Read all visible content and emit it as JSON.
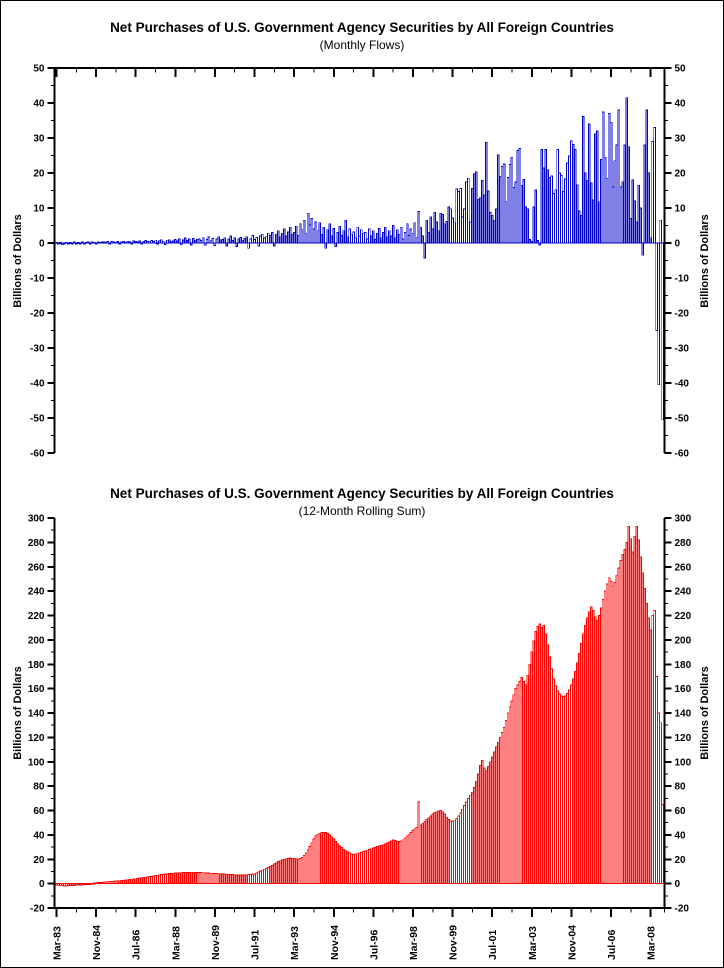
{
  "page": {
    "background": "#ffffff",
    "border_color": "#000000"
  },
  "chart_data": [
    {
      "type": "bar",
      "title": "Net Purchases of U.S. Government Agency Securities by All Foreign Countries",
      "subtitle": "(Monthly Flows)",
      "ylabel": "Billions of Dollars",
      "ylabel_right": "Billions of Dollars",
      "ylim": [
        -60,
        50
      ],
      "ytick_major": 10,
      "ytick_minor": 5,
      "bar_color": "#0000CC",
      "grid": false,
      "x_unit": "month",
      "x_start": "Mar-1983",
      "x_end": "Sep-2008",
      "xtick_interval_months": 20,
      "xtick_labels": [
        "Mar-83",
        "Nov-84",
        "Jul-86",
        "Mar-88",
        "Nov-89",
        "Jul-91",
        "Mar-93",
        "Nov-94",
        "Jul-96",
        "Mar-98",
        "Nov-99",
        "Jul-01",
        "Mar-03",
        "Nov-04",
        "Jul-06",
        "Mar-08"
      ],
      "values": [
        0.2,
        -0.3,
        0.1,
        -0.4,
        -0.2,
        0.2,
        -0.3,
        0.1,
        -0.2,
        0.3,
        -0.2,
        0.1,
        -0.2,
        0.3,
        -0.1,
        0.2,
        0.3,
        -0.2,
        0.3,
        0.2,
        -0.1,
        0.3,
        0.2,
        0.3,
        0.3,
        0.2,
        0.4,
        -0.2,
        0.4,
        0.3,
        0.2,
        0.4,
        -0.2,
        0.3,
        0.5,
        0.2,
        0.5,
        0.3,
        -0.2,
        0.6,
        0.4,
        0.3,
        0.6,
        -0.3,
        0.5,
        0.7,
        0.4,
        0.5,
        0.7,
        0.4,
        0.8,
        -0.3,
        0.6,
        0.9,
        0.5,
        -0.4,
        0.8,
        0.9,
        0.5,
        0.6,
        1.0,
        0.6,
        1.2,
        -0.5,
        0.9,
        1.4,
        0.7,
        1.1,
        -0.6,
        1.3,
        0.8,
        1.0,
        1.2,
        0.7,
        1.5,
        -0.6,
        1.0,
        1.7,
        0.8,
        1.3,
        -0.7,
        1.2,
        1.8,
        0.9,
        1.0,
        1.5,
        -0.8,
        1.2,
        2.0,
        0.7,
        1.4,
        -1.0,
        1.1,
        1.6,
        0.8,
        1.3,
        1.8,
        -1.5,
        1.2,
        2.2,
        1.0,
        1.6,
        -0.8,
        2.0,
        2.5,
        1.4,
        1.8,
        2.8,
        2.2,
        3.0,
        -0.9,
        2.5,
        3.5,
        1.8,
        2.8,
        4.0,
        2.0,
        3.2,
        4.5,
        2.5,
        3.0,
        4.8,
        2.2,
        5.5,
        3.8,
        6.5,
        2.8,
        8.5,
        5.2,
        7.0,
        4.0,
        6.0,
        3.5,
        5.8,
        2.5,
        4.5,
        -1.5,
        3.8,
        5.5,
        2.0,
        4.2,
        -1.0,
        3.0,
        4.8,
        2.2,
        3.5,
        6.5,
        1.8,
        4.0,
        2.5,
        3.2,
        1.5,
        4.5,
        2.0,
        3.8,
        2.8,
        3.0,
        1.2,
        4.0,
        2.0,
        3.5,
        1.0,
        2.8,
        4.2,
        1.5,
        3.0,
        4.5,
        1.8,
        3.5,
        2.0,
        5.0,
        1.5,
        3.8,
        2.5,
        4.5,
        1.2,
        3.0,
        5.5,
        2.2,
        4.0,
        2.8,
        5.8,
        1.5,
        9.0,
        4.5,
        2.0,
        -4.3,
        6.5,
        3.0,
        7.5,
        4.0,
        8.8,
        6.0,
        3.5,
        8.5,
        8.1,
        5.5,
        6.2,
        10.3,
        9.8,
        7.1,
        5.8,
        15.4,
        14.7,
        15.6,
        7.4,
        9.7,
        17.4,
        18.5,
        6.0,
        15.6,
        19.7,
        20.3,
        12.5,
        12.9,
        17.8,
        13.7,
        28.7,
        14.9,
        8.7,
        7.9,
        6.5,
        9.7,
        25.1,
        19.0,
        21.9,
        22.6,
        11.8,
        18.7,
        22.4,
        24.5,
        15.8,
        17.4,
        26.4,
        27.0,
        16.4,
        18.1,
        10.3,
        9.8,
        1.0,
        0.4,
        10.3,
        15.2,
        0.7,
        -0.6,
        26.7,
        21.4,
        26.7,
        20.9,
        18.7,
        19.1,
        14.2,
        15.2,
        26.7,
        20.0,
        19.3,
        14.7,
        18.3,
        22.9,
        24.8,
        29.2,
        28.2,
        26.7,
        16.6,
        9.1,
        7.9,
        36.1,
        20.0,
        17.8,
        34.0,
        17.1,
        12.3,
        31.1,
        32.0,
        11.8,
        23.8,
        37.4,
        24.5,
        18.5,
        37.0,
        34.5,
        16.0,
        23.5,
        28.0,
        38.0,
        16.0,
        17.5,
        28.0,
        41.5,
        27.5,
        7.0,
        18.0,
        12.0,
        6.0,
        16.5,
        10.0,
        -3.5,
        28.0,
        38.0,
        20.0,
        1.5,
        29.0,
        33.0,
        -25.0,
        -40.5,
        6.5,
        -50.5
      ]
    },
    {
      "type": "bar",
      "title": "Net Purchases of U.S. Government Agency Securities by All Foreign Countries",
      "subtitle": "(12-Month Rolling Sum)",
      "ylabel": "Billions of Dollars",
      "ylabel_right": "Billions of Dollars",
      "ylim": [
        -20,
        300
      ],
      "ytick_major": 20,
      "ytick_minor": 10,
      "bar_color": "#FF0000",
      "grid": false,
      "x_unit": "month",
      "x_start": "Mar-1983",
      "x_end": "Sep-2008",
      "xtick_interval_months": 20,
      "xtick_labels": [
        "Mar-83",
        "Nov-84",
        "Jul-86",
        "Mar-88",
        "Nov-89",
        "Jul-91",
        "Mar-93",
        "Nov-94",
        "Jul-96",
        "Mar-98",
        "Nov-99",
        "Jul-01",
        "Mar-03",
        "Nov-04",
        "Jul-06",
        "Mar-08"
      ],
      "values": [
        -1.0,
        -1.2,
        -1.5,
        -1.6,
        -1.8,
        -1.8,
        -1.7,
        -1.6,
        -1.5,
        -1.4,
        -1.3,
        -1.2,
        -1.1,
        -1.0,
        -0.8,
        -0.6,
        -0.3,
        0.0,
        0.2,
        0.4,
        0.6,
        0.8,
        0.9,
        1.0,
        1.2,
        1.3,
        1.5,
        1.6,
        1.8,
        1.9,
        2.1,
        2.2,
        2.4,
        2.6,
        2.8,
        3.0,
        3.2,
        3.4,
        3.6,
        3.8,
        4.0,
        4.2,
        4.5,
        4.7,
        5.0,
        5.2,
        5.5,
        5.8,
        6.0,
        6.3,
        6.6,
        6.9,
        7.2,
        7.4,
        7.6,
        7.8,
        8.0,
        8.2,
        8.4,
        8.5,
        8.6,
        8.7,
        8.8,
        8.9,
        9.0,
        9.1,
        9.2,
        9.2,
        9.3,
        9.3,
        9.2,
        9.2,
        9.1,
        9.0,
        8.9,
        8.8,
        8.7,
        8.6,
        8.5,
        8.4,
        8.3,
        8.2,
        8.1,
        8.0,
        7.9,
        7.8,
        7.7,
        7.6,
        7.5,
        7.4,
        7.3,
        7.2,
        7.2,
        7.1,
        7.1,
        7.2,
        7.3,
        7.4,
        7.6,
        7.8,
        8.0,
        8.7,
        9.4,
        10.2,
        11.0,
        11.8,
        12.5,
        13.2,
        14.0,
        15.0,
        16.0,
        17.0,
        18.0,
        18.8,
        19.5,
        20.0,
        20.4,
        20.7,
        21.0,
        20.8,
        20.5,
        20.3,
        20.2,
        20.5,
        21.5,
        23.0,
        25.0,
        27.5,
        30.5,
        33.5,
        36.5,
        39.0,
        40.5,
        41.3,
        41.8,
        42.0,
        41.8,
        41.0,
        40.0,
        38.5,
        36.5,
        34.5,
        32.5,
        31.0,
        29.5,
        28.0,
        26.8,
        25.8,
        25.0,
        24.4,
        24.0,
        24.2,
        24.5,
        25.0,
        25.6,
        26.2,
        26.8,
        27.4,
        28.0,
        28.6,
        29.2,
        29.8,
        30.3,
        30.8,
        31.3,
        31.8,
        32.5,
        33.3,
        34.2,
        35.0,
        35.8,
        35.4,
        34.8,
        34.5,
        35.0,
        36.0,
        37.5,
        39.0,
        40.5,
        42.0,
        43.5,
        45.0,
        46.2,
        67.0,
        48.0,
        49.5,
        51.0,
        52.5,
        54.0,
        55.5,
        57.0,
        58.2,
        59.0,
        59.6,
        60.0,
        59.0,
        57.0,
        54.5,
        52.5,
        51.5,
        51.0,
        52.0,
        53.5,
        55.5,
        58.0,
        61.0,
        64.0,
        67.0,
        70.0,
        72.5,
        75.0,
        79.0,
        84.0,
        90.0,
        97.0,
        101.0,
        95.0,
        93.0,
        96.0,
        100.0,
        104.0,
        108.0,
        112.0,
        116.0,
        120.0,
        124.0,
        128.0,
        134.0,
        140.0,
        145.0,
        150.0,
        155.0,
        160.0,
        163.0,
        166.0,
        169.0,
        166.0,
        163.0,
        171.0,
        180.0,
        190.0,
        199.0,
        207.0,
        211.0,
        213.0,
        210.0,
        212.0,
        205.0,
        196.0,
        186.0,
        176.0,
        168.0,
        162.0,
        158.0,
        155.5,
        154.0,
        153.5,
        154.0,
        156.0,
        159.0,
        163.0,
        168.0,
        174.0,
        181.0,
        189.0,
        197.0,
        205.0,
        212.0,
        218.0,
        223.0,
        227.0,
        224.0,
        219.0,
        216.0,
        220.0,
        226.0,
        233.0,
        240.0,
        246.0,
        251.0,
        248.0,
        244.0,
        247.0,
        253.0,
        259.0,
        265.0,
        270.0,
        274.0,
        280,
        293,
        283,
        272,
        285,
        293,
        282,
        268,
        255,
        242,
        230,
        218,
        208,
        220,
        224,
        170,
        140,
        132,
        65
      ]
    }
  ]
}
